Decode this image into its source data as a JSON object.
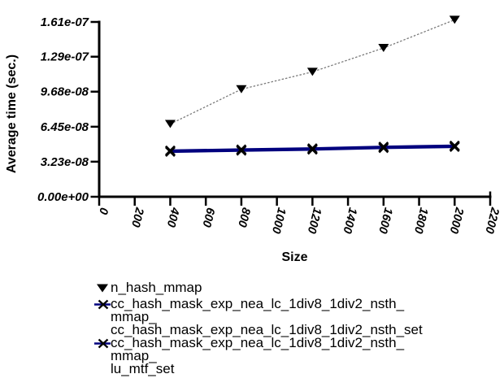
{
  "chart_data": {
    "type": "line",
    "title": "",
    "xlabel": "Size",
    "ylabel": "Average time (sec.)",
    "xlim": [
      0,
      2200
    ],
    "ylim": [
      0,
      1.61e-07
    ],
    "x_ticks": [
      0,
      200,
      400,
      600,
      800,
      1000,
      1200,
      1400,
      1600,
      1800,
      2000,
      2200
    ],
    "y_ticks": [
      0,
      3.23e-08,
      6.45e-08,
      9.68e-08,
      1.29e-07,
      1.61e-07
    ],
    "y_tick_labels": [
      "0.00e+00",
      "3.23e-08",
      "6.45e-08",
      "9.68e-08",
      "1.29e-07",
      "1.61e-07"
    ],
    "grid": false,
    "legend_position": "bottom-left",
    "x": [
      400,
      800,
      1200,
      1600,
      2000
    ],
    "series": [
      {
        "name": "n_hash_mmap",
        "legend_lines": [
          "n_hash_mmap"
        ],
        "marker": "triangle-down-icon",
        "marker_color": "#000000",
        "line_color": "#7a7a7a",
        "line_style": "dotted",
        "line_width": 1.3,
        "values": [
          6.7e-08,
          9.9e-08,
          1.15e-07,
          1.37e-07,
          1.63e-07
        ]
      },
      {
        "name": "cc_hash_mask_exp_nea_lc_1div8_1div2_nsth_mmap_cc_hash_mask_exp_nea_lc_1div8_1div2_nsth_set",
        "legend_lines": [
          "cc_hash_mask_exp_nea_lc_1div8_1div2_nsth_",
          "mmap_",
          "cc_hash_mask_exp_nea_lc_1div8_1div2_nsth_set"
        ],
        "marker": "x-icon",
        "marker_color": "#000000",
        "line_color": "#00007e",
        "line_style": "solid",
        "line_width": 3,
        "values": [
          4.25e-08,
          4.35e-08,
          4.45e-08,
          4.6e-08,
          4.7e-08
        ]
      },
      {
        "name": "cc_hash_mask_exp_nea_lc_1div8_1div2_nsth_mmap_lu_mtf_set",
        "legend_lines": [
          "cc_hash_mask_exp_nea_lc_1div8_1div2_nsth_",
          "mmap_",
          "lu_mtf_set"
        ],
        "marker": "x-icon",
        "marker_color": "#000000",
        "line_color": "#00007e",
        "line_style": "solid",
        "line_width": 3,
        "values": [
          4.15e-08,
          4.25e-08,
          4.35e-08,
          4.5e-08,
          4.6e-08
        ]
      }
    ]
  }
}
